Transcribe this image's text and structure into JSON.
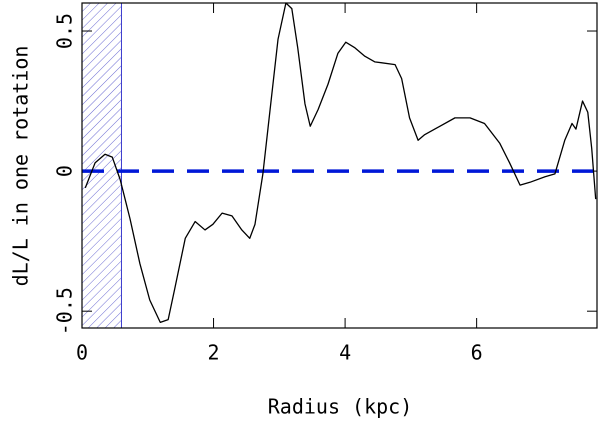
{
  "chart_data": {
    "type": "line",
    "x_label": "Radius (kpc)",
    "y_label": "dL/L in one rotation",
    "xlim": [
      0,
      7.83
    ],
    "ylim": [
      -0.56,
      0.6
    ],
    "xticks": [
      0,
      2,
      4,
      6
    ],
    "yticks": [
      -0.5,
      0,
      0.5
    ],
    "shaded_xrange": [
      0,
      0.6
    ],
    "shade_color": "#3a3acc",
    "reference_line": 0,
    "reference_color": "#0018d8",
    "series": [
      {
        "color": "#000000",
        "x": [
          0.05,
          0.2,
          0.35,
          0.46,
          0.58,
          0.73,
          0.88,
          1.03,
          1.19,
          1.31,
          1.41,
          1.57,
          1.72,
          1.87,
          1.99,
          2.13,
          2.28,
          2.43,
          2.55,
          2.63,
          2.75,
          2.86,
          2.98,
          3.1,
          3.19,
          3.28,
          3.39,
          3.47,
          3.59,
          3.74,
          3.89,
          4.01,
          4.15,
          4.3,
          4.45,
          4.76,
          4.86,
          4.98,
          5.11,
          5.21,
          5.44,
          5.67,
          5.9,
          6.12,
          6.35,
          6.5,
          6.66,
          6.81,
          7.04,
          7.19,
          7.34,
          7.45,
          7.51,
          7.61,
          7.69,
          7.75,
          7.81
        ],
        "values": [
          -0.06,
          0.03,
          0.06,
          0.05,
          -0.03,
          -0.17,
          -0.33,
          -0.46,
          -0.54,
          -0.53,
          -0.42,
          -0.24,
          -0.18,
          -0.21,
          -0.19,
          -0.15,
          -0.16,
          -0.21,
          -0.24,
          -0.19,
          -0.01,
          0.22,
          0.47,
          0.6,
          0.58,
          0.44,
          0.24,
          0.16,
          0.22,
          0.31,
          0.42,
          0.46,
          0.44,
          0.41,
          0.39,
          0.38,
          0.33,
          0.19,
          0.11,
          0.13,
          0.16,
          0.19,
          0.19,
          0.17,
          0.1,
          0.03,
          -0.05,
          -0.04,
          -0.02,
          -0.01,
          0.11,
          0.17,
          0.15,
          0.25,
          0.21,
          0.08,
          -0.1
        ]
      }
    ]
  }
}
